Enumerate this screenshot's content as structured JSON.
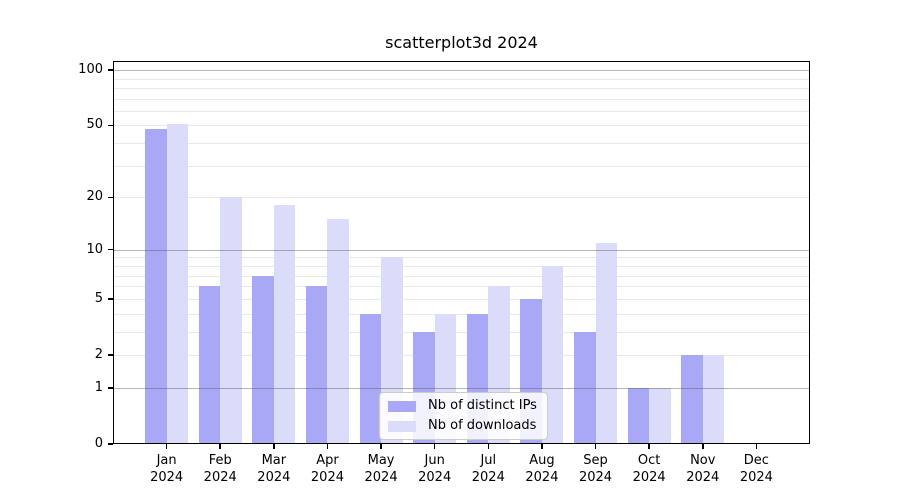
{
  "chart_data": {
    "type": "bar",
    "title": "scatterplot3d 2024",
    "categories": [
      "Jan",
      "Feb",
      "Mar",
      "Apr",
      "May",
      "Jun",
      "Jul",
      "Aug",
      "Sep",
      "Oct",
      "Nov",
      "Dec"
    ],
    "year_label": "2024",
    "series": [
      {
        "name": "Nb of distinct IPs",
        "color": "#a8a8f6",
        "values": [
          48,
          6,
          7,
          6,
          4,
          3,
          4,
          5,
          3,
          1,
          2,
          0
        ]
      },
      {
        "name": "Nb of downloads",
        "color": "#dbdbfa",
        "values": [
          51,
          20,
          18,
          15,
          9,
          4,
          6,
          8,
          11,
          1,
          2,
          0
        ]
      }
    ],
    "yaxis": {
      "scale": "log1p",
      "ylim": [
        0,
        112
      ],
      "tick_labels": [
        100,
        50,
        20,
        10,
        5,
        2,
        1,
        0
      ],
      "major_gridlines": [
        1,
        10,
        100
      ],
      "minor_gridlines": [
        2,
        3,
        4,
        5,
        6,
        7,
        8,
        9,
        20,
        30,
        40,
        50,
        60,
        70,
        80,
        90
      ]
    },
    "legend_position": "lower center",
    "grid": true
  },
  "colors": {
    "major_grid": "rgba(90,90,90,0.45)",
    "minor_grid": "rgba(100,100,100,0.14)",
    "axis": "#000000"
  }
}
